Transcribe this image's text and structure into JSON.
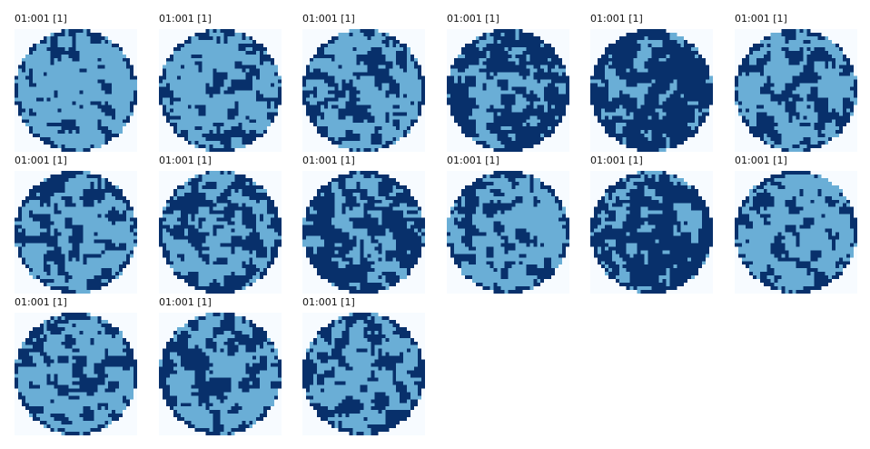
{
  "colors": {
    "background": "#f7fbff",
    "light_cell": "#6aaed6",
    "dark_cell": "#08306b"
  },
  "tiles": [
    {
      "label": "01:001 [1]",
      "dark_ratio": 0.38
    },
    {
      "label": "01:001 [1]",
      "dark_ratio": 0.45
    },
    {
      "label": "01:001 [1]",
      "dark_ratio": 0.42
    },
    {
      "label": "01:001 [1]",
      "dark_ratio": 0.55
    },
    {
      "label": "01:001 [1]",
      "dark_ratio": 0.62
    },
    {
      "label": "01:001 [1]",
      "dark_ratio": 0.45
    },
    {
      "label": "01:001 [1]",
      "dark_ratio": 0.44
    },
    {
      "label": "01:001 [1]",
      "dark_ratio": 0.48
    },
    {
      "label": "01:001 [1]",
      "dark_ratio": 0.55
    },
    {
      "label": "01:001 [1]",
      "dark_ratio": 0.4
    },
    {
      "label": "01:001 [1]",
      "dark_ratio": 0.55
    },
    {
      "label": "01:001 [1]",
      "dark_ratio": 0.38
    },
    {
      "label": "01:001 [1]",
      "dark_ratio": 0.42
    },
    {
      "label": "01:001 [1]",
      "dark_ratio": 0.48
    },
    {
      "label": "01:001 [1]",
      "dark_ratio": 0.45
    }
  ]
}
